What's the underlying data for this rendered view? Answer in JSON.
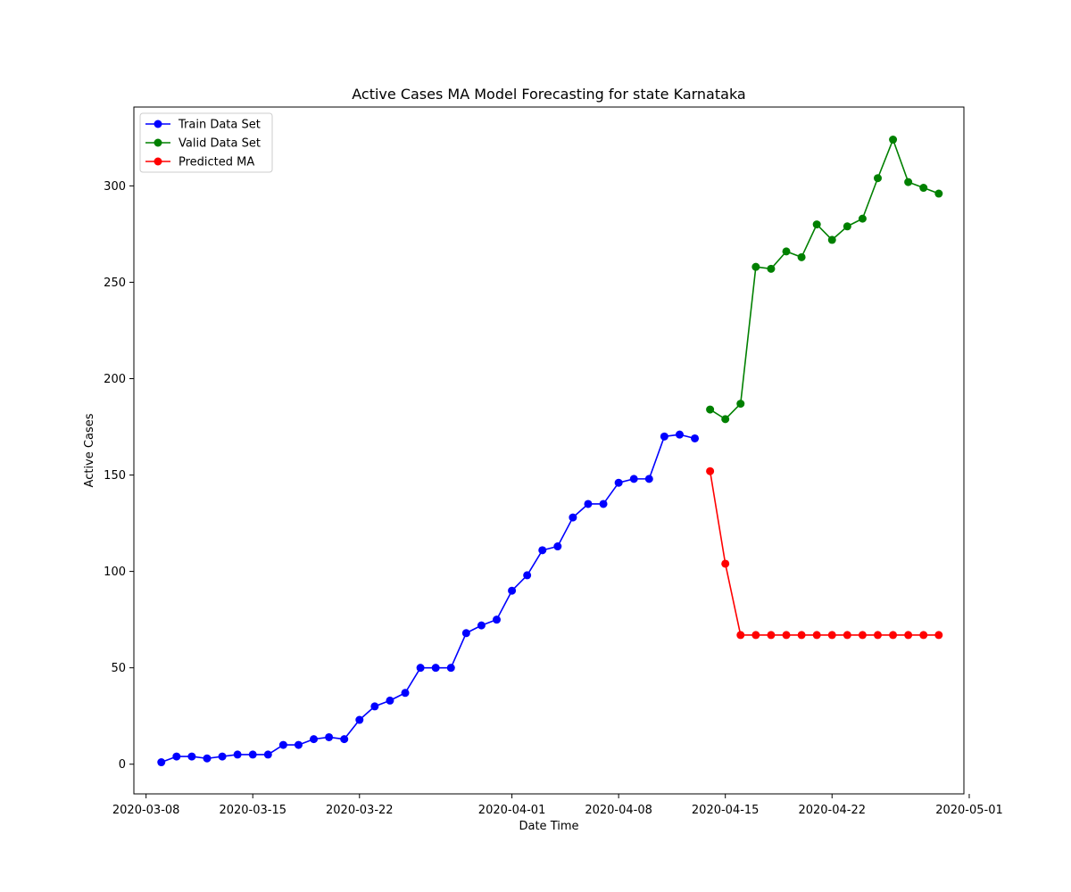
{
  "chart_data": {
    "type": "line",
    "title": "Active Cases MA Model Forecasting for state Karnataka",
    "xlabel": "Date Time",
    "ylabel": "Active Cases",
    "x_scale": "date",
    "xlim": [
      "2020-03-07",
      "2020-04-30"
    ],
    "ylim": [
      -15,
      340
    ],
    "x_ticks": [
      "2020-03-08",
      "2020-03-15",
      "2020-03-22",
      "2020-04-01",
      "2020-04-08",
      "2020-04-15",
      "2020-04-22",
      "2020-05-01"
    ],
    "y_ticks": [
      0,
      50,
      100,
      150,
      200,
      250,
      300
    ],
    "grid": false,
    "legend_position": "top-left",
    "series": [
      {
        "name": "Train Data Set",
        "color": "#0000ff",
        "marker": "circle",
        "x": [
          "2020-03-09",
          "2020-03-10",
          "2020-03-11",
          "2020-03-12",
          "2020-03-13",
          "2020-03-14",
          "2020-03-15",
          "2020-03-16",
          "2020-03-17",
          "2020-03-18",
          "2020-03-19",
          "2020-03-20",
          "2020-03-21",
          "2020-03-22",
          "2020-03-23",
          "2020-03-24",
          "2020-03-25",
          "2020-03-26",
          "2020-03-27",
          "2020-03-28",
          "2020-03-29",
          "2020-03-30",
          "2020-03-31",
          "2020-04-01",
          "2020-04-02",
          "2020-04-03",
          "2020-04-04",
          "2020-04-05",
          "2020-04-06",
          "2020-04-07",
          "2020-04-08",
          "2020-04-09",
          "2020-04-10",
          "2020-04-11",
          "2020-04-12",
          "2020-04-13"
        ],
        "y": [
          1,
          4,
          4,
          3,
          4,
          5,
          5,
          5,
          10,
          10,
          13,
          14,
          13,
          23,
          30,
          33,
          37,
          50,
          50,
          50,
          68,
          72,
          75,
          90,
          98,
          111,
          113,
          128,
          135,
          135,
          146,
          148,
          148,
          170,
          171,
          169
        ]
      },
      {
        "name": "Valid Data Set",
        "color": "#008000",
        "marker": "circle",
        "x": [
          "2020-04-14",
          "2020-04-15",
          "2020-04-16",
          "2020-04-17",
          "2020-04-18",
          "2020-04-19",
          "2020-04-20",
          "2020-04-21",
          "2020-04-22",
          "2020-04-23",
          "2020-04-24",
          "2020-04-25",
          "2020-04-26",
          "2020-04-27",
          "2020-04-28",
          "2020-04-29"
        ],
        "y": [
          184,
          179,
          187,
          258,
          257,
          266,
          263,
          280,
          272,
          279,
          283,
          304,
          324,
          302,
          299,
          296
        ]
      },
      {
        "name": "Predicted MA",
        "color": "#ff0000",
        "marker": "circle",
        "x": [
          "2020-04-14",
          "2020-04-15",
          "2020-04-16",
          "2020-04-17",
          "2020-04-18",
          "2020-04-19",
          "2020-04-20",
          "2020-04-21",
          "2020-04-22",
          "2020-04-23",
          "2020-04-24",
          "2020-04-25",
          "2020-04-26",
          "2020-04-27",
          "2020-04-28",
          "2020-04-29"
        ],
        "y": [
          152,
          104,
          67,
          67,
          67,
          67,
          67,
          67,
          67,
          67,
          67,
          67,
          67,
          67,
          67,
          67
        ]
      }
    ]
  }
}
